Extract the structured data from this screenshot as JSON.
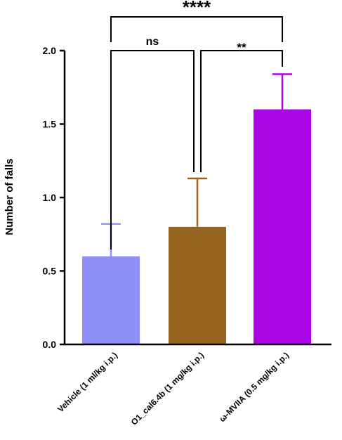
{
  "chart_data": {
    "type": "bar",
    "title": "",
    "xlabel": "",
    "ylabel": "Number of falls",
    "ylim": [
      0,
      2.0
    ],
    "yticks": [
      "0.0",
      "0.5",
      "1.0",
      "1.5",
      "2.0"
    ],
    "grid": false,
    "categories": [
      "Vehicle (1 ml/kg i.p.)",
      "O1_cal6.4b (1 mg/kg i.p.)",
      "ω-MVIIA (0.5 mg/kg i.p.)"
    ],
    "values": [
      0.6,
      0.8,
      1.6
    ],
    "errors": [
      0.22,
      0.33,
      0.24
    ],
    "colors": [
      "#9090fa",
      "#956420",
      "#ab05e3"
    ],
    "significance": [
      {
        "from": 0,
        "to": 1,
        "label": "ns"
      },
      {
        "from": 1,
        "to": 2,
        "label": "**"
      },
      {
        "from": 0,
        "to": 2,
        "label": "****"
      }
    ]
  }
}
